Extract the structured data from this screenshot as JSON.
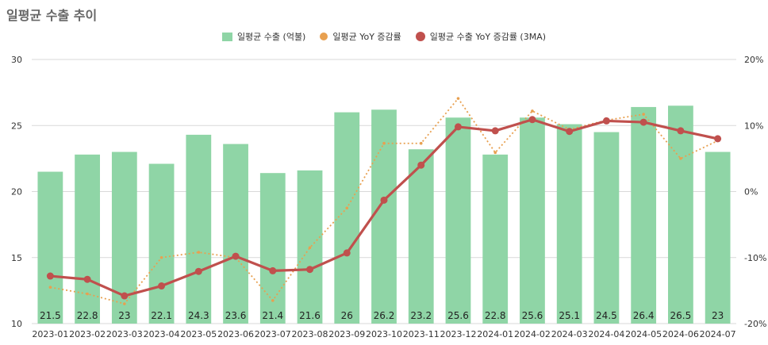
{
  "title": "일평균 수출 추이",
  "chart_data": {
    "type": "bar",
    "categories": [
      "2023-01",
      "2023-02",
      "2023-03",
      "2023-04",
      "2023-05",
      "2023-06",
      "2023-07",
      "2023-08",
      "2023-09",
      "2023-10",
      "2023-11",
      "2023-12",
      "2024-01",
      "2024-02",
      "2024-03",
      "2024-04",
      "2024-05",
      "2024-06",
      "2024-07"
    ],
    "series": [
      {
        "name": "일평균 수출 (억불)",
        "type": "bar",
        "axis": "left",
        "color": "#8fd5a6",
        "values": [
          21.5,
          22.8,
          23,
          22.1,
          24.3,
          23.6,
          21.4,
          21.6,
          26,
          26.2,
          23.2,
          25.6,
          22.8,
          25.6,
          25.1,
          24.5,
          26.4,
          26.5,
          23
        ]
      },
      {
        "name": "일평균 YoY 증감률",
        "type": "line-dotted",
        "axis": "right",
        "color": "#e8a050",
        "values": [
          -14.5,
          -15.5,
          -17,
          -10,
          -9.2,
          -10,
          -16.5,
          -8.5,
          -2.5,
          7.3,
          7.3,
          14.1,
          5.9,
          12.2,
          9.4,
          10.8,
          11.7,
          5.0,
          7.7
        ]
      },
      {
        "name": "일평균 수출 YoY 증감률 (3MA)",
        "type": "line",
        "axis": "right",
        "color": "#c0504d",
        "values": [
          -12.8,
          -13.3,
          -15.8,
          -14.3,
          -12.1,
          -9.8,
          -12.0,
          -11.8,
          -9.3,
          -1.3,
          4.0,
          9.8,
          9.2,
          10.9,
          9.1,
          10.7,
          10.5,
          9.2,
          8.0
        ]
      }
    ],
    "ylim_left": [
      10,
      30
    ],
    "yticks_left": [
      "10",
      "15",
      "20",
      "25",
      "30"
    ],
    "ylim_right": [
      -20,
      20
    ],
    "yticks_right": [
      "-20%",
      "-10%",
      "0%",
      "10%",
      "20%"
    ],
    "grid": true,
    "legend": "top-center",
    "bar_label_color": "#222222"
  }
}
